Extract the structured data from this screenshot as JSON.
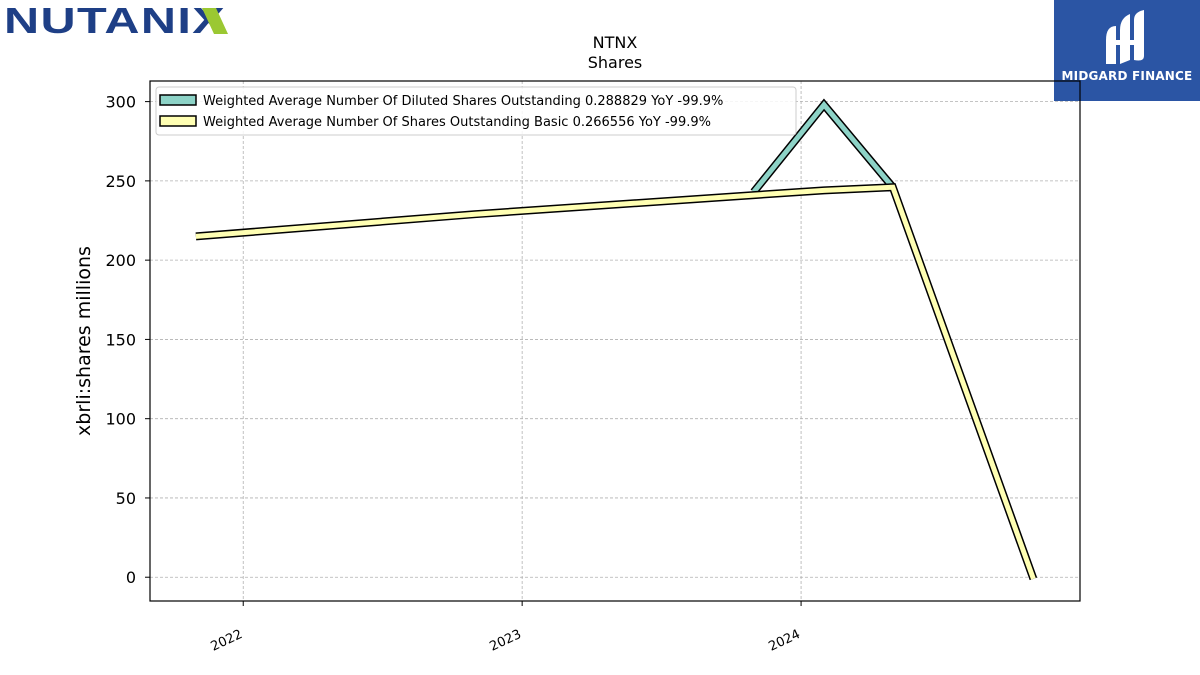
{
  "logos": {
    "left_brand": "NUTANIX",
    "right_brand": "MIDGARD FINANCE"
  },
  "colors": {
    "diluted": "#8dd3c7",
    "basic": "#ffffb3",
    "grid": "#b0b0b0",
    "nutanix_blue": "#1e3f86",
    "nutanix_green": "#9bc832",
    "midgard_blue": "#2b55a4"
  },
  "chart_data": {
    "type": "line",
    "title": "NTNX",
    "subtitle": "Shares",
    "ylabel": "xbrli:shares millions",
    "ylim": [
      -15,
      313
    ],
    "xlim": [
      "2021-09-01",
      "2024-12-31"
    ],
    "yticks": [
      0,
      50,
      100,
      150,
      200,
      250,
      300
    ],
    "xticks": [
      {
        "date": "2022-01-01",
        "label": "2022"
      },
      {
        "date": "2023-01-01",
        "label": "2023"
      },
      {
        "date": "2024-01-01",
        "label": "2024"
      }
    ],
    "grid": true,
    "legend_position": "upper-left",
    "series": [
      {
        "name": "Weighted Average Number Of Diluted Shares Outstanding  0.288829 YoY -99.9%",
        "color": "diluted",
        "points": [
          {
            "x": "2023-10-31",
            "y": 243
          },
          {
            "x": "2024-01-31",
            "y": 298
          },
          {
            "x": "2024-04-30",
            "y": 246
          }
        ]
      },
      {
        "name": "Weighted Average Number Of Shares Outstanding Basic  0.266556 YoY -99.9%",
        "color": "basic",
        "points": [
          {
            "x": "2021-10-31",
            "y": 215
          },
          {
            "x": "2022-10-31",
            "y": 229
          },
          {
            "x": "2023-10-31",
            "y": 241
          },
          {
            "x": "2024-01-31",
            "y": 244
          },
          {
            "x": "2024-04-30",
            "y": 246
          },
          {
            "x": "2024-10-31",
            "y": -1
          }
        ]
      }
    ]
  }
}
